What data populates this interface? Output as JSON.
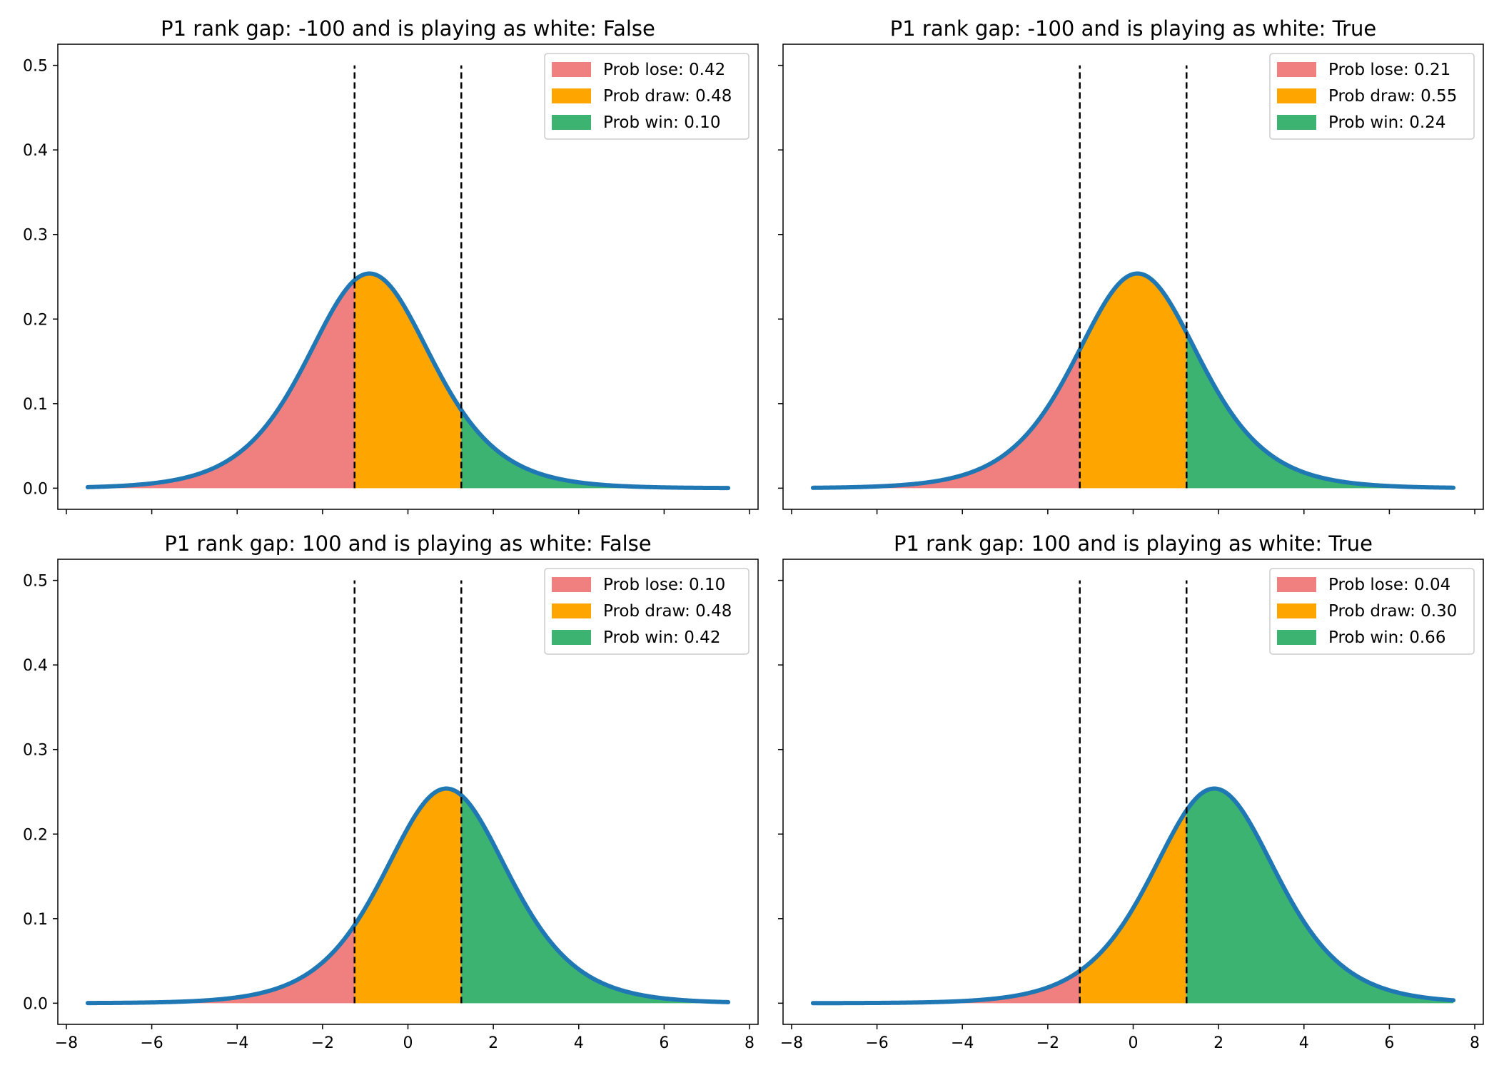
{
  "colors": {
    "lose": "#f08080",
    "draw": "#ffa500",
    "win": "#3cb371",
    "curve": "#1f77b4",
    "threshold": "#000000"
  },
  "chart_data": [
    {
      "type": "area",
      "title": "P1 rank gap: -100 and is playing as white: False",
      "xlim": [
        -8.2,
        8.2
      ],
      "ylim": [
        -0.025,
        0.525
      ],
      "x_range": [
        -7.5,
        7.5
      ],
      "distribution": "logistic",
      "location": -0.9,
      "thresholds": [
        -1.25,
        1.25
      ],
      "threshold_line_top": 0.5,
      "legend": [
        "Prob lose: 0.42",
        "Prob draw: 0.48",
        "Prob win: 0.10"
      ],
      "legend_position": "upper right",
      "show_xtick_labels": false,
      "show_ytick_labels": true
    },
    {
      "type": "area",
      "title": "P1 rank gap: -100 and is playing as white: True",
      "xlim": [
        -8.2,
        8.2
      ],
      "ylim": [
        -0.025,
        0.525
      ],
      "x_range": [
        -7.5,
        7.5
      ],
      "distribution": "logistic",
      "location": 0.1,
      "thresholds": [
        -1.25,
        1.25
      ],
      "threshold_line_top": 0.5,
      "legend": [
        "Prob lose: 0.21",
        "Prob draw: 0.55",
        "Prob win: 0.24"
      ],
      "legend_position": "upper right",
      "show_xtick_labels": false,
      "show_ytick_labels": false
    },
    {
      "type": "area",
      "title": "P1 rank gap: 100 and is playing as white: False",
      "xlim": [
        -8.2,
        8.2
      ],
      "ylim": [
        -0.025,
        0.525
      ],
      "x_range": [
        -7.5,
        7.5
      ],
      "distribution": "logistic",
      "location": 0.9,
      "thresholds": [
        -1.25,
        1.25
      ],
      "threshold_line_top": 0.5,
      "legend": [
        "Prob lose: 0.10",
        "Prob draw: 0.48",
        "Prob win: 0.42"
      ],
      "legend_position": "upper right",
      "show_xtick_labels": true,
      "show_ytick_labels": true
    },
    {
      "type": "area",
      "title": "P1 rank gap: 100 and is playing as white: True",
      "xlim": [
        -8.2,
        8.2
      ],
      "ylim": [
        -0.025,
        0.525
      ],
      "x_range": [
        -7.5,
        7.5
      ],
      "distribution": "logistic",
      "location": 1.9,
      "thresholds": [
        -1.25,
        1.25
      ],
      "threshold_line_top": 0.5,
      "legend": [
        "Prob lose: 0.04",
        "Prob draw: 0.30",
        "Prob win: 0.66"
      ],
      "legend_position": "upper right",
      "show_xtick_labels": true,
      "show_ytick_labels": false
    }
  ],
  "axes": {
    "xticks": [
      -8,
      -6,
      -4,
      -2,
      0,
      2,
      4,
      6,
      8
    ],
    "xtick_labels": [
      "−8",
      "−6",
      "−4",
      "−2",
      "0",
      "2",
      "4",
      "6",
      "8"
    ],
    "yticks": [
      0.0,
      0.1,
      0.2,
      0.3,
      0.4,
      0.5
    ],
    "ytick_labels": [
      "0.0",
      "0.1",
      "0.2",
      "0.3",
      "0.4",
      "0.5"
    ]
  }
}
